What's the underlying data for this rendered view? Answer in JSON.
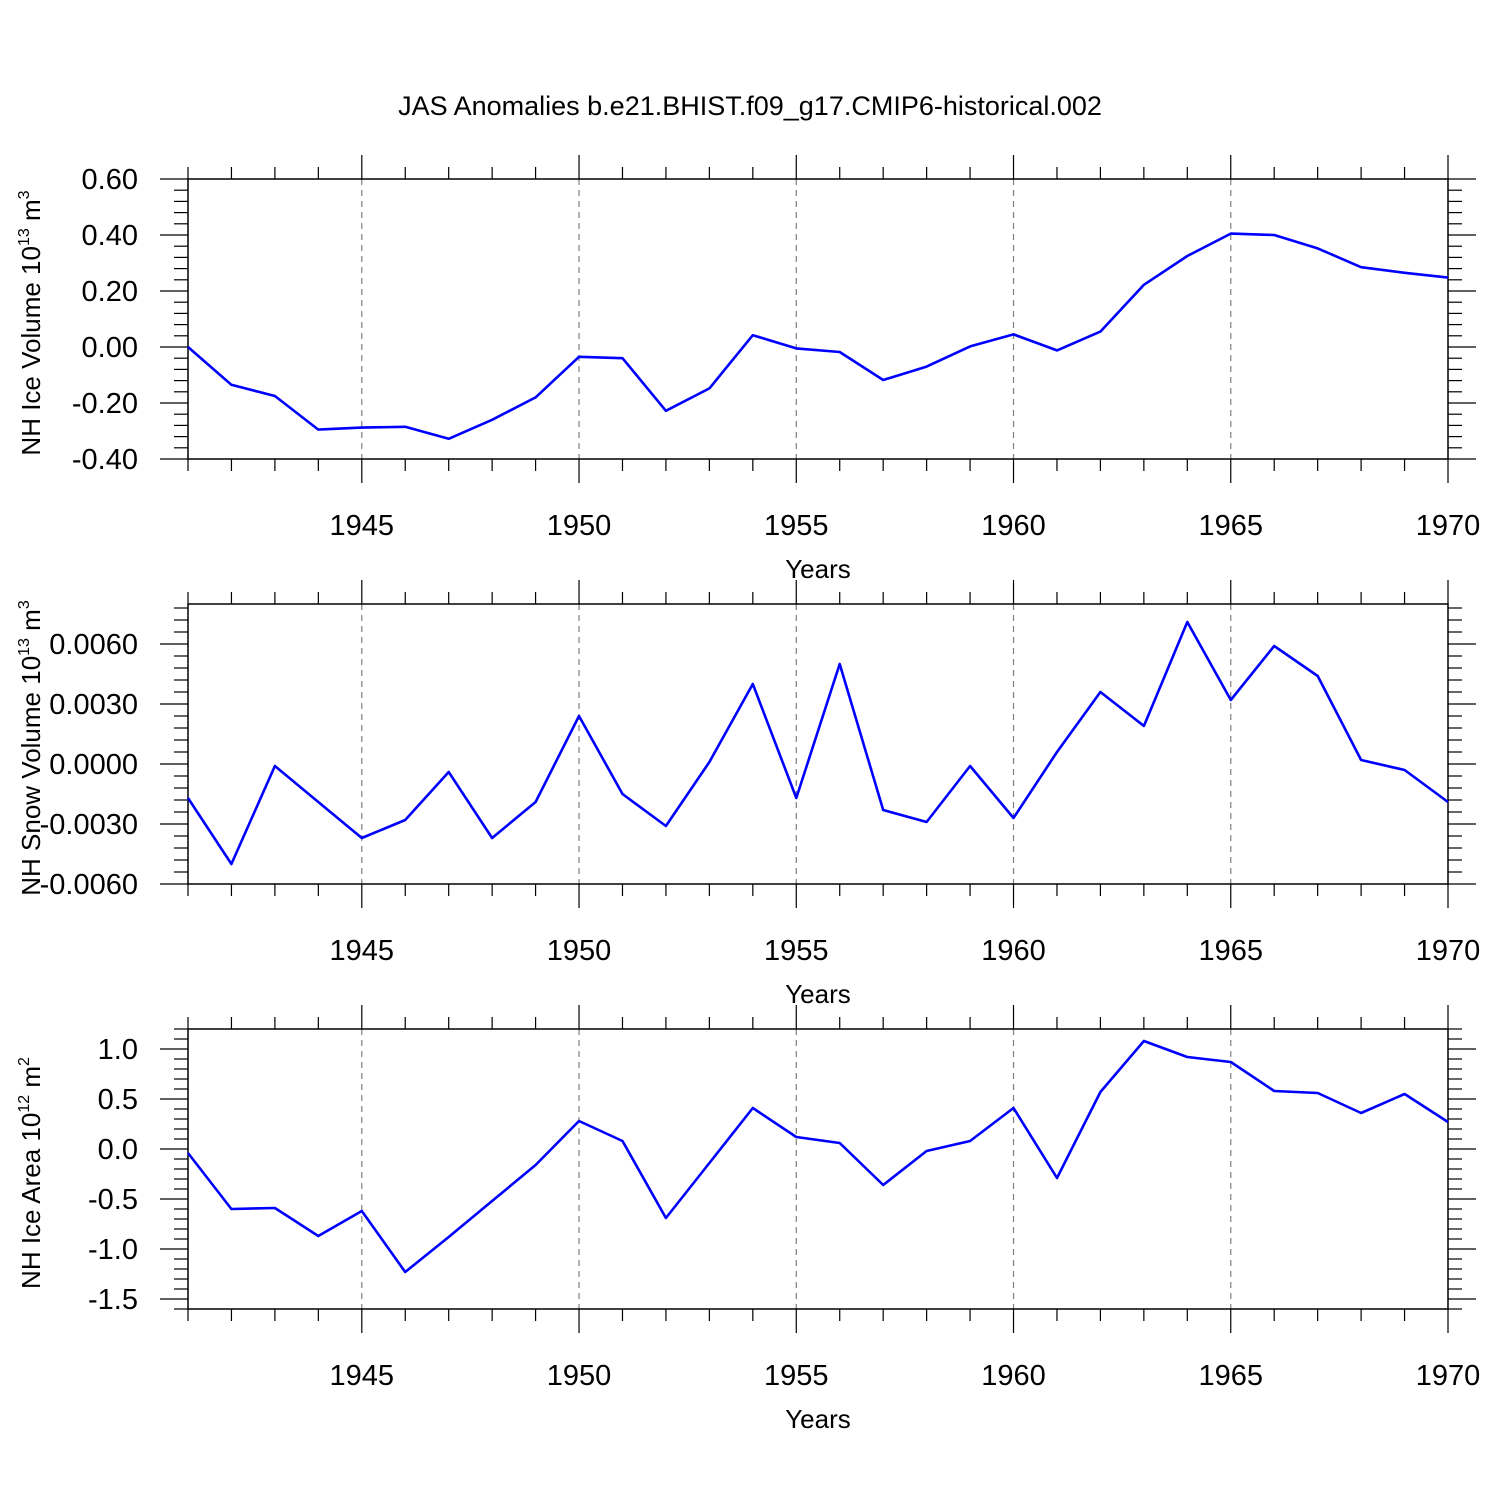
{
  "title": "JAS Anomalies b.e21.BHIST.f09_g17.CMIP6-historical.002",
  "colors": {
    "series": "#0000ff",
    "axis": "#000000",
    "grid": "#7f7f7f"
  },
  "chart_data": [
    {
      "type": "line",
      "ylabel": "NH Ice Volume 10",
      "ylabel_sup": "13",
      "ylabel_unit": " m",
      "ylabel_unit_sup": "3",
      "xlabel": "Years",
      "xlim": [
        1941,
        1970
      ],
      "ylim": [
        -0.4,
        0.6
      ],
      "yticks": [
        -0.4,
        -0.2,
        0.0,
        0.2,
        0.4,
        0.6
      ],
      "ytick_labels": [
        "-0.40",
        "-0.20",
        "0.00",
        "0.20",
        "0.40",
        "0.60"
      ],
      "xticks": [
        1945,
        1950,
        1955,
        1960,
        1965,
        1970
      ],
      "xtick_labels": [
        "1945",
        "1950",
        "1955",
        "1960",
        "1965",
        "1970"
      ],
      "grid": "vertical dashed at labeled years",
      "x": [
        1941,
        1942,
        1943,
        1944,
        1945,
        1946,
        1947,
        1948,
        1949,
        1950,
        1951,
        1952,
        1953,
        1954,
        1955,
        1956,
        1957,
        1958,
        1959,
        1960,
        1961,
        1962,
        1963,
        1964,
        1965,
        1966,
        1967,
        1968,
        1969,
        1970
      ],
      "values": [
        0.0,
        -0.135,
        -0.175,
        -0.295,
        -0.288,
        -0.285,
        -0.328,
        -0.26,
        -0.18,
        -0.035,
        -0.04,
        -0.228,
        -0.148,
        0.042,
        -0.005,
        -0.018,
        -0.118,
        -0.07,
        0.002,
        0.045,
        -0.012,
        0.055,
        0.222,
        0.325,
        0.405,
        0.4,
        0.352,
        0.285,
        0.265,
        0.248
      ]
    },
    {
      "type": "line",
      "ylabel": "NH Snow Volume 10",
      "ylabel_sup": "13",
      "ylabel_unit": " m",
      "ylabel_unit_sup": "3",
      "xlabel": "Years",
      "xlim": [
        1941,
        1970
      ],
      "ylim": [
        -0.006,
        0.008
      ],
      "yticks": [
        -0.006,
        -0.003,
        0.0,
        0.003,
        0.006
      ],
      "ytick_labels": [
        "-0.0060",
        "-0.0030",
        "0.0000",
        "0.0030",
        "0.0060"
      ],
      "xticks": [
        1945,
        1950,
        1955,
        1960,
        1965,
        1970
      ],
      "xtick_labels": [
        "1945",
        "1950",
        "1955",
        "1960",
        "1965",
        "1970"
      ],
      "grid": "vertical dashed at labeled years",
      "x": [
        1941,
        1942,
        1943,
        1944,
        1945,
        1946,
        1947,
        1948,
        1949,
        1950,
        1951,
        1952,
        1953,
        1954,
        1955,
        1956,
        1957,
        1958,
        1959,
        1960,
        1961,
        1962,
        1963,
        1964,
        1965,
        1966,
        1967,
        1968,
        1969,
        1970
      ],
      "values": [
        -0.0017,
        -0.005,
        -0.0001,
        -0.0019,
        -0.0037,
        -0.0028,
        -0.0004,
        -0.0037,
        -0.0019,
        0.0024,
        -0.0015,
        -0.0031,
        0.0001,
        0.004,
        -0.0017,
        0.005,
        -0.0023,
        -0.0029,
        -0.0001,
        -0.0027,
        0.0006,
        0.0036,
        0.0019,
        0.0071,
        0.0032,
        0.0059,
        0.0044,
        0.0002,
        -0.0003,
        -0.0019
      ]
    },
    {
      "type": "line",
      "ylabel": "NH Ice Area 10",
      "ylabel_sup": "12",
      "ylabel_unit": " m",
      "ylabel_unit_sup": "2",
      "xlabel": "Years",
      "xlim": [
        1941,
        1970
      ],
      "ylim": [
        -1.6,
        1.2
      ],
      "yticks": [
        -1.5,
        -1.0,
        -0.5,
        0.0,
        0.5,
        1.0
      ],
      "ytick_labels": [
        "-1.5",
        "-1.0",
        "-0.5",
        "0.0",
        "0.5",
        "1.0"
      ],
      "xticks": [
        1945,
        1950,
        1955,
        1960,
        1965,
        1970
      ],
      "xtick_labels": [
        "1945",
        "1950",
        "1955",
        "1960",
        "1965",
        "1970"
      ],
      "grid": "vertical dashed at labeled years",
      "x": [
        1941,
        1942,
        1943,
        1944,
        1945,
        1946,
        1947,
        1948,
        1949,
        1950,
        1951,
        1952,
        1953,
        1954,
        1955,
        1956,
        1957,
        1958,
        1959,
        1960,
        1961,
        1962,
        1963,
        1964,
        1965,
        1966,
        1967,
        1968,
        1969,
        1970
      ],
      "values": [
        -0.04,
        -0.6,
        -0.59,
        -0.87,
        -0.62,
        -1.23,
        -0.88,
        -0.52,
        -0.16,
        0.28,
        0.08,
        -0.69,
        -0.14,
        0.41,
        0.12,
        0.06,
        -0.36,
        -0.02,
        0.08,
        0.41,
        -0.29,
        0.57,
        1.08,
        0.92,
        0.87,
        0.58,
        0.56,
        0.36,
        0.55,
        0.27
      ]
    }
  ]
}
